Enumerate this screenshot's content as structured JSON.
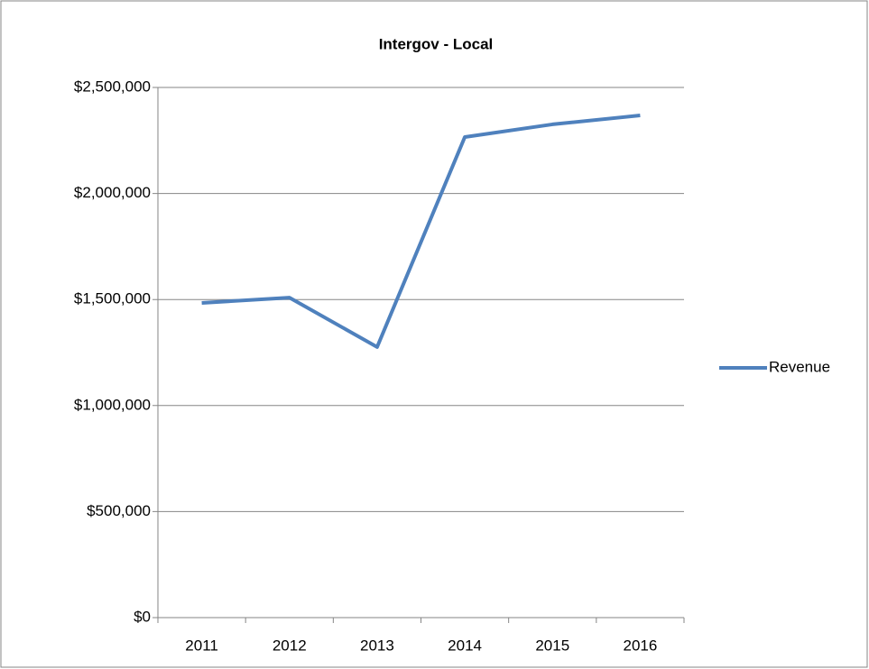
{
  "chart_data": {
    "type": "line",
    "title": "Intergov - Local",
    "categories": [
      "2011",
      "2012",
      "2013",
      "2014",
      "2015",
      "2016"
    ],
    "series": [
      {
        "name": "Revenue",
        "color": "#4f81bd",
        "values": [
          1484000,
          1509000,
          1276000,
          2266000,
          2326000,
          2368000
        ]
      }
    ],
    "ylim": [
      0,
      2500000
    ],
    "yticks": [
      {
        "value": 0,
        "label": "$0"
      },
      {
        "value": 500000,
        "label": "$500,000"
      },
      {
        "value": 1000000,
        "label": "$1,000,000"
      },
      {
        "value": 1500000,
        "label": "$1,500,000"
      },
      {
        "value": 2000000,
        "label": "$2,000,000"
      },
      {
        "value": 2500000,
        "label": "$2,500,000"
      }
    ],
    "grid": true,
    "legend": "right"
  }
}
